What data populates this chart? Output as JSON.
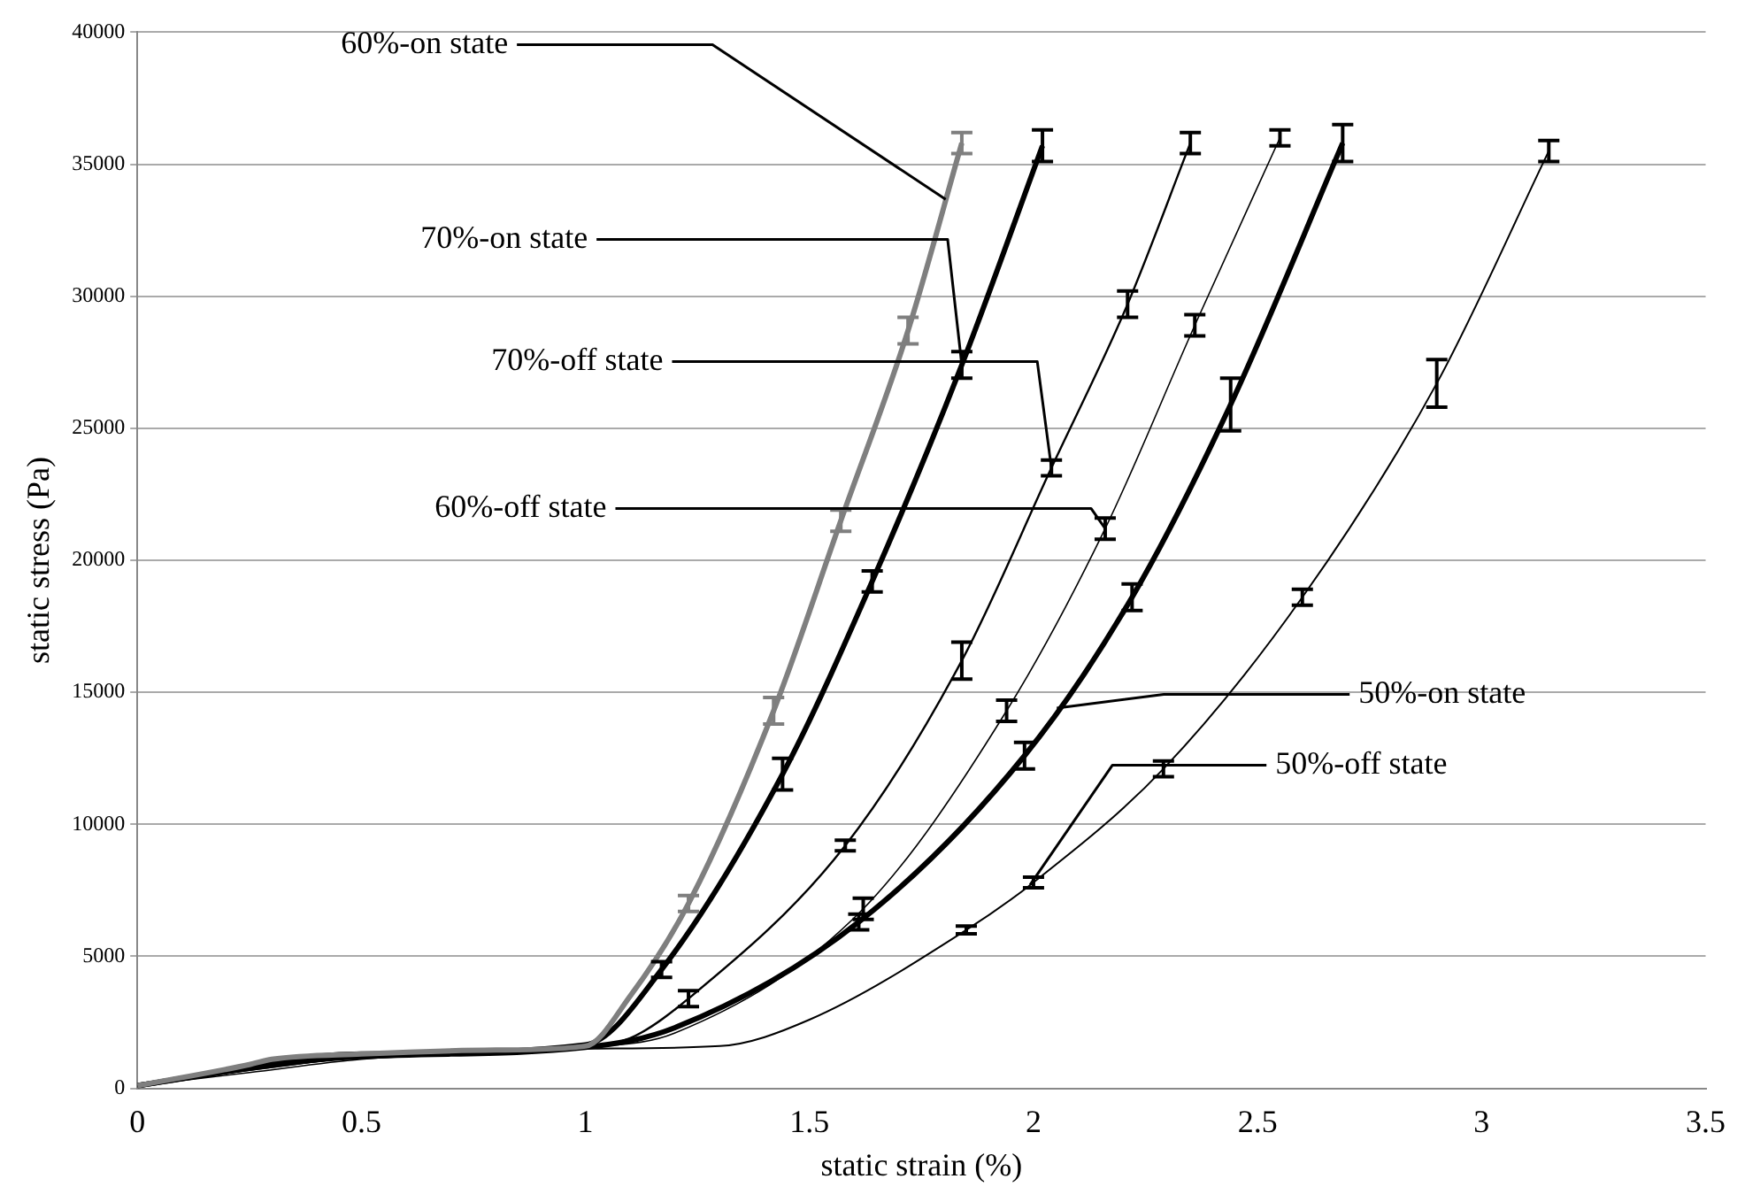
{
  "chart_data": {
    "type": "line",
    "xlabel": "static strain (%)",
    "ylabel": "static stress (Pa)",
    "xlim": [
      0,
      3.5
    ],
    "xticks": [
      0,
      0.5,
      1,
      1.5,
      2,
      2.5,
      3,
      3.5
    ],
    "ylim": [
      0,
      40000
    ],
    "yticks": [
      0,
      5000,
      10000,
      15000,
      20000,
      25000,
      30000,
      35000,
      40000
    ],
    "grid": "y",
    "series": [
      {
        "name": "60%-on state",
        "color": "#7f7f7f",
        "x": [
          0,
          0.25,
          0.3,
          0.5,
          0.8,
          1.0,
          1.1,
          1.23,
          1.42,
          1.57,
          1.72,
          1.84
        ],
        "values": [
          100,
          900,
          1100,
          1300,
          1450,
          1600,
          3500,
          7000,
          14300,
          21500,
          28700,
          35800
        ],
        "errors": [
          null,
          null,
          null,
          null,
          null,
          null,
          null,
          300,
          500,
          400,
          500,
          400
        ]
      },
      {
        "name": "70%-on state",
        "color": "#000000",
        "x": [
          0,
          0.25,
          0.3,
          0.5,
          1.0,
          1.17,
          1.44,
          1.64,
          1.84,
          2.02
        ],
        "values": [
          100,
          800,
          1000,
          1300,
          1650,
          4500,
          11900,
          19200,
          27400,
          35700
        ],
        "errors": [
          null,
          null,
          null,
          null,
          null,
          300,
          600,
          400,
          500,
          600
        ]
      },
      {
        "name": "70%-off state",
        "color": "#000000",
        "x": [
          0,
          0.25,
          0.5,
          1.0,
          1.1,
          1.23,
          1.58,
          1.84,
          2.04,
          2.21,
          2.35
        ],
        "values": [
          100,
          700,
          1200,
          1600,
          1900,
          3400,
          9200,
          16200,
          23500,
          29700,
          35800
        ],
        "errors": [
          null,
          null,
          null,
          null,
          null,
          300,
          200,
          700,
          300,
          500,
          400
        ]
      },
      {
        "name": "60%-off state",
        "color": "#000000",
        "x": [
          0,
          0.25,
          0.5,
          1.0,
          1.2,
          1.62,
          1.94,
          2.16,
          2.36,
          2.55
        ],
        "values": [
          100,
          600,
          1100,
          1550,
          2100,
          6800,
          14300,
          21200,
          28900,
          36000
        ],
        "errors": [
          null,
          null,
          null,
          null,
          null,
          400,
          400,
          400,
          400,
          300
        ]
      },
      {
        "name": "50%-on state",
        "color": "#000000",
        "x": [
          0,
          0.3,
          0.5,
          1.0,
          1.2,
          1.61,
          1.98,
          2.22,
          2.44,
          2.69
        ],
        "values": [
          100,
          900,
          1200,
          1550,
          2300,
          6300,
          12600,
          18600,
          25900,
          35800
        ],
        "errors": [
          null,
          null,
          null,
          null,
          null,
          300,
          500,
          500,
          1000,
          700
        ]
      },
      {
        "name": "50%-off state",
        "color": "#000000",
        "x": [
          0,
          0.3,
          0.5,
          1.0,
          1.3,
          1.5,
          1.85,
          2.0,
          2.29,
          2.6,
          2.9,
          3.15
        ],
        "values": [
          100,
          800,
          1200,
          1500,
          1600,
          2600,
          6000,
          7800,
          12100,
          18600,
          26700,
          35500
        ],
        "errors": [
          null,
          null,
          null,
          null,
          null,
          null,
          150,
          200,
          300,
          300,
          900,
          400
        ]
      }
    ]
  }
}
